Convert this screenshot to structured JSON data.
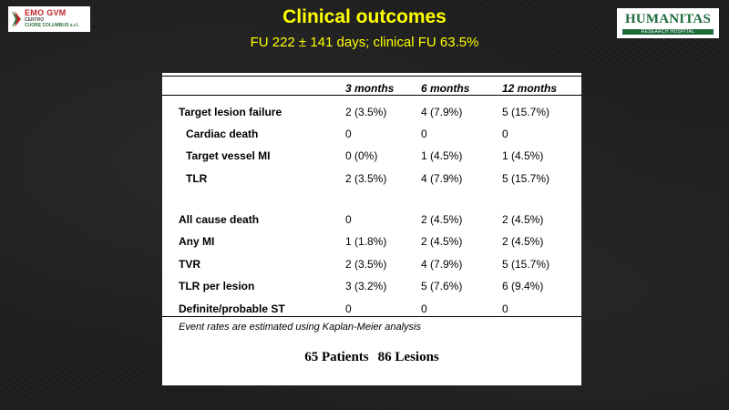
{
  "title": "Clinical outcomes",
  "subtitle": "FU 222 ± 141 days; clinical FU 63.5%",
  "logo_left": {
    "line1": "EMO GVM",
    "line2": "CENTRO",
    "line3": "CUORE COLUMBUS s.r.l."
  },
  "logo_right": {
    "name": "HUMANITAS",
    "tagline": "RESEARCH HOSPITAL"
  },
  "table": {
    "headers": [
      "3 months",
      "6 months",
      "12 months"
    ],
    "rows": [
      {
        "label": "Target lesion failure",
        "indent": false,
        "values": [
          "2 (3.5%)",
          "4 (7.9%)",
          "5 (15.7%)"
        ]
      },
      {
        "label": "Cardiac death",
        "indent": true,
        "values": [
          "0",
          "0",
          "0"
        ]
      },
      {
        "label": "Target vessel MI",
        "indent": true,
        "values": [
          "0 (0%)",
          "1 (4.5%)",
          "1 (4.5%)"
        ]
      },
      {
        "label": "TLR",
        "indent": true,
        "values": [
          "2 (3.5%)",
          "4 (7.9%)",
          "5 (15.7%)"
        ]
      },
      {
        "label": "All cause death",
        "indent": false,
        "values": [
          "0",
          "2 (4.5%)",
          "2 (4.5%)"
        ]
      },
      {
        "label": "Any MI",
        "indent": false,
        "values": [
          "1 (1.8%)",
          "2 (4.5%)",
          "2 (4.5%)"
        ]
      },
      {
        "label": "TVR",
        "indent": false,
        "values": [
          "2 (3.5%)",
          "4 (7.9%)",
          "5 (15.7%)"
        ]
      },
      {
        "label": "TLR per lesion",
        "indent": false,
        "values": [
          "3 (3.2%)",
          "5 (7.6%)",
          "6 (9.4%)"
        ]
      },
      {
        "label": "Definite/probable ST",
        "indent": false,
        "values": [
          "0",
          "0",
          "0"
        ]
      }
    ]
  },
  "note": "Event rates are estimated using Kaplan-Meier analysis",
  "patients": "65 Patients",
  "lesions": "86 Lesions",
  "colors": {
    "title": "#ffff00",
    "humanitas_green": "#1e6b3a",
    "emo_red": "#c0262c"
  }
}
